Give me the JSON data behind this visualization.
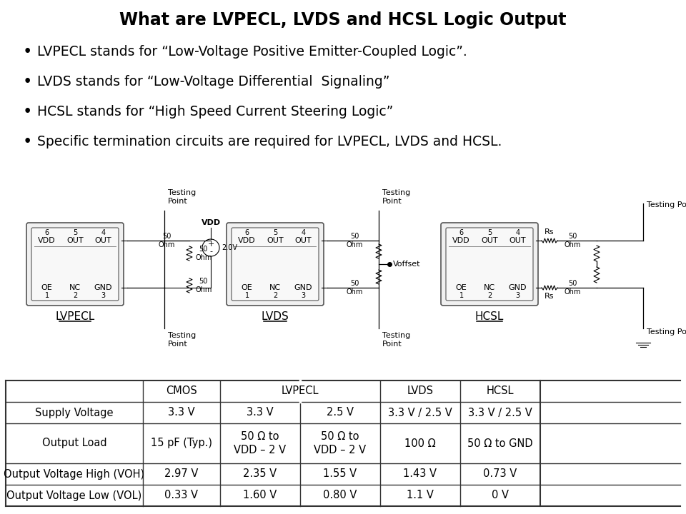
{
  "title": "What are LVPECL, LVDS and HCSL Logic Output",
  "bullets": [
    "LVPECL stands for “Low-Voltage Positive Emitter-Coupled Logic”.",
    "LVDS stands for “Low-Voltage Differential  Signaling”",
    "HCSL stands for “High Speed Current Steering Logic”",
    "Specific termination circuits are required for LVPECL, LVDS and HCSL."
  ],
  "table_data": [
    [
      "Supply Voltage",
      "3.3 V",
      "3.3 V",
      "2.5 V",
      "3.3 V / 2.5 V",
      "3.3 V / 2.5 V"
    ],
    [
      "Output Load",
      "15 pF (Typ.)",
      "50 Ω to\nVDD – 2 V",
      "50 Ω to\nVDD – 2 V",
      "100 Ω",
      "50 Ω to GND"
    ],
    [
      "Output Voltage High (VOH)",
      "2.97 V",
      "2.35 V",
      "1.55 V",
      "1.43 V",
      "0.73 V"
    ],
    [
      "Output Voltage Low (VOL)",
      "0.33 V",
      "1.60 V",
      "0.80 V",
      "1.1 V",
      "0 V"
    ]
  ],
  "bg_color": "#ffffff",
  "text_color": "#000000",
  "title_fontsize": 17,
  "bullet_fontsize": 13.5,
  "table_fontsize": 10.5,
  "diagram_fontsize": 8
}
